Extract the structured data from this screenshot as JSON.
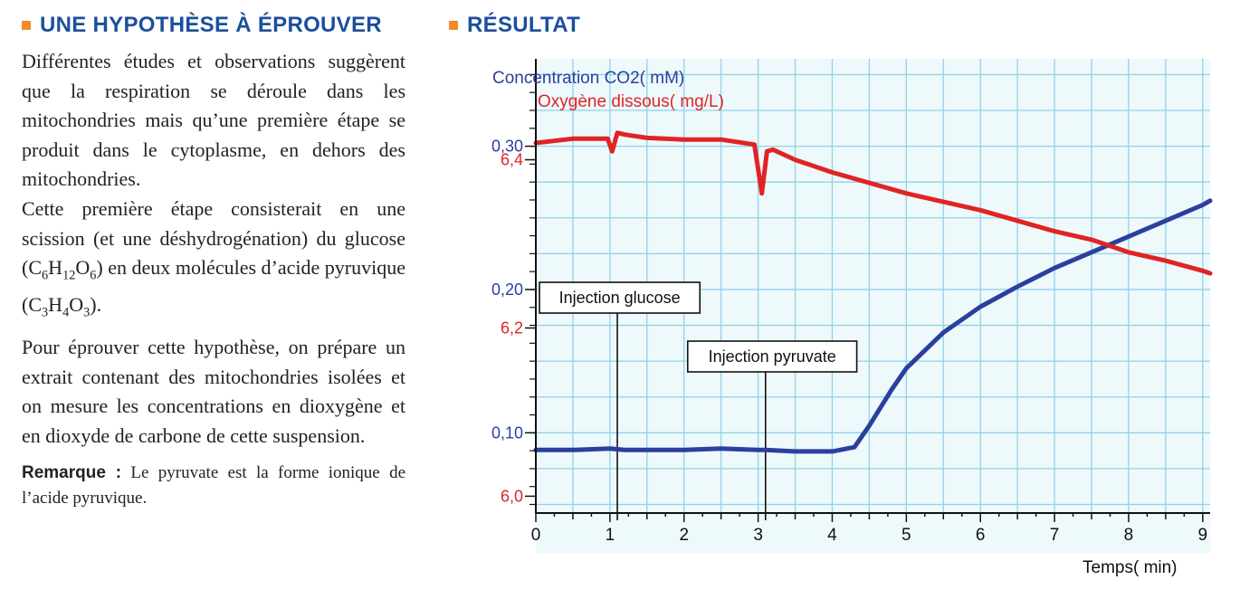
{
  "left": {
    "heading": "UNE HYPOTHÈSE À ÉPROUVER",
    "p1": "Différentes études et observations suggèrent que la respiration se déroule dans les mitochondries mais qu’une première étape se produit dans le cytoplasme, en dehors des mitochondries.",
    "p2_pre": "Cette première étape consisterait en une scission (et une déshydrogénation) du glucose (",
    "formula1": {
      "c": "C",
      "c_n": "6",
      "h": "H",
      "h_n": "12",
      "o": "O",
      "o_n": "6"
    },
    "p2_mid": ") en deux molécules d’acide pyruvique (",
    "formula2": {
      "c": "C",
      "c_n": "3",
      "h": "H",
      "h_n": "4",
      "o": "O",
      "o_n": "3"
    },
    "p2_post": ").",
    "p3": "Pour éprouver cette hypothèse, on prépare un extrait contenant des mitochondries isolées et on mesure les concentrations en dioxygène et en dioxyde de carbone de cette suspension.",
    "remark_label": "Remarque :",
    "remark_text": " Le pyruvate est la forme ionique de l’acide pyruvique."
  },
  "right": {
    "heading": "RÉSULTAT"
  },
  "colors": {
    "accent": "#f28c28",
    "heading": "#1b4f9c",
    "co2": "#2c3f9e",
    "o2": "#e02424",
    "grid": "#8fd3e8",
    "plot_bg": "#eef9fc"
  },
  "chart_data": {
    "type": "line",
    "x_label": "Temps( min)",
    "x_ticks": [
      0,
      1,
      2,
      3,
      4,
      5,
      6,
      7,
      8,
      9
    ],
    "xlim": [
      0,
      9.1
    ],
    "series": [
      {
        "name": "Concentration CO2( mM)",
        "color": "#2c3f9e",
        "ylim": [
          0.044,
          0.361
        ],
        "y_ticks": [
          0.1,
          0.2,
          0.3
        ],
        "y_tick_labels": [
          "0,10",
          "0,20",
          "0,30"
        ],
        "x": [
          0,
          0.5,
          1,
          1.2,
          1.5,
          2,
          2.5,
          3,
          3.1,
          3.5,
          4,
          4.3,
          4.5,
          4.8,
          5,
          5.5,
          6,
          6.5,
          7,
          7.5,
          8,
          8.5,
          9,
          9.1
        ],
        "y": [
          0.088,
          0.088,
          0.089,
          0.088,
          0.088,
          0.088,
          0.089,
          0.088,
          0.088,
          0.087,
          0.087,
          0.09,
          0.105,
          0.13,
          0.145,
          0.17,
          0.188,
          0.202,
          0.215,
          0.226,
          0.237,
          0.248,
          0.259,
          0.262
        ]
      },
      {
        "name": "Oxygène dissous( mg/L)",
        "color": "#e02424",
        "ylim": [
          5.98,
          6.52
        ],
        "y_ticks": [
          6.0,
          6.2,
          6.4
        ],
        "y_tick_labels": [
          "6,0",
          "6,2",
          "6,4"
        ],
        "x": [
          0,
          0.5,
          0.97,
          1.03,
          1.1,
          1.2,
          1.5,
          2,
          2.5,
          2.95,
          3.05,
          3.12,
          3.2,
          3.5,
          4,
          5,
          6,
          7,
          7.5,
          8,
          8.5,
          9,
          9.1
        ],
        "y": [
          6.42,
          6.425,
          6.425,
          6.41,
          6.432,
          6.43,
          6.426,
          6.424,
          6.424,
          6.418,
          6.36,
          6.41,
          6.412,
          6.4,
          6.385,
          6.36,
          6.34,
          6.315,
          6.305,
          6.29,
          6.28,
          6.268,
          6.265
        ]
      }
    ],
    "annotations": [
      {
        "label": "Injection glucose",
        "x": 1.1
      },
      {
        "label": "Injection pyruvate",
        "x": 3.1
      }
    ]
  }
}
